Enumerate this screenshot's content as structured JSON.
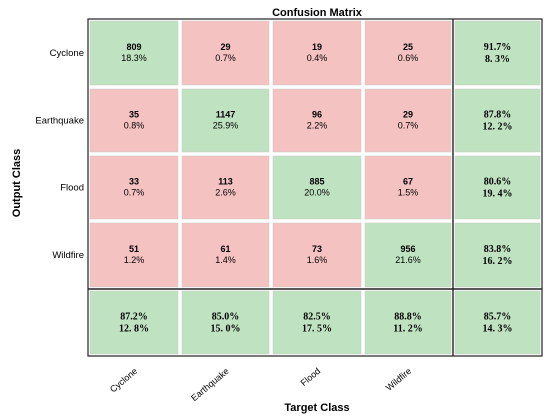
{
  "chart_data": {
    "type": "heatmap",
    "title": "Confusion Matrix",
    "xlabel": "Target Class",
    "ylabel": "Output Class",
    "row_labels": [
      "Cyclone",
      "Earthquake",
      "Flood",
      "Wildfire"
    ],
    "col_labels": [
      "Cyclone",
      "Earthquake",
      "Flood",
      "Wildfire"
    ],
    "counts": [
      [
        809,
        29,
        19,
        25
      ],
      [
        35,
        1147,
        96,
        29
      ],
      [
        33,
        113,
        885,
        67
      ],
      [
        51,
        61,
        73,
        956
      ]
    ],
    "percents": [
      [
        "18.3%",
        "0.7%",
        "0.4%",
        "0.6%"
      ],
      [
        "0.8%",
        "25.9%",
        "2.2%",
        "0.7%"
      ],
      [
        "0.7%",
        "2.6%",
        "20.0%",
        "1.5%"
      ],
      [
        "1.2%",
        "1.4%",
        "1.6%",
        "21.6%"
      ]
    ],
    "row_summary": [
      [
        "91.7%",
        "8. 3%"
      ],
      [
        "87.8%",
        "12. 2%"
      ],
      [
        "80.6%",
        "19. 4%"
      ],
      [
        "83.8%",
        "16. 2%"
      ]
    ],
    "col_summary": [
      [
        "87.2%",
        "12. 8%"
      ],
      [
        "85.0%",
        "15. 0%"
      ],
      [
        "82.5%",
        "17. 5%"
      ],
      [
        "88.8%",
        "11. 2%"
      ]
    ],
    "total_summary": [
      "85.7%",
      "14. 3%"
    ],
    "colors": {
      "correct": "#bfe3c0",
      "incorrect": "#f4c2c0",
      "border": "#222222"
    }
  }
}
